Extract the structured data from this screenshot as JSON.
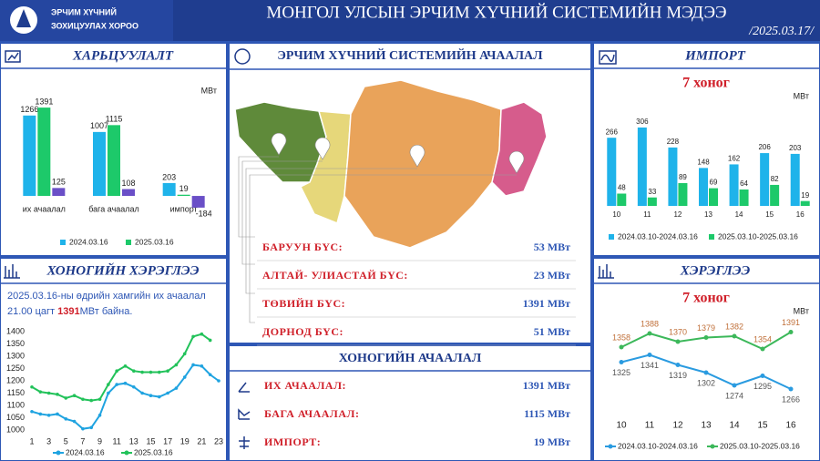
{
  "header": {
    "org_line1": "ЭРЧИМ ХҮЧНИЙ",
    "org_line2": "ЗОХИЦУУЛАХ ХОРОО",
    "title": "МОНГОЛ УЛСЫН ЭРЧИМ ХҮЧНИЙ СИСТЕМИЙН МЭДЭЭ",
    "date": "/2025.03.17/"
  },
  "chart_data": [
    {
      "type": "bar",
      "title": "ХАРЬЦУУЛАЛТ",
      "unit": "МВт",
      "categories": [
        "их ачаалал",
        "бага ачаалал",
        "импорт"
      ],
      "series": [
        {
          "name": "2024.03.16",
          "color": "#1fb3ea",
          "values": [
            1266,
            1007,
            203
          ]
        },
        {
          "name": "2025.03.16",
          "color": "#1dc96a",
          "values": [
            1391,
            1115,
            19
          ]
        },
        {
          "color": "#6a4fc7",
          "values": [
            125,
            108,
            -184
          ]
        }
      ],
      "ylim": [
        -200,
        1500
      ]
    },
    {
      "type": "line",
      "title": "ХОНОГИЙН ХЭРЭГЛЭЭ",
      "annotation": {
        "line1": "2025.03.16-ны өдрийн хамгийн их ачаалал",
        "line2_start": "21.00 цагт ",
        "line2_highlight": "1391",
        "line2_end": "МВт байна."
      },
      "x": [
        1,
        2,
        3,
        4,
        5,
        6,
        7,
        8,
        9,
        10,
        11,
        12,
        13,
        14,
        15,
        16,
        17,
        18,
        19,
        20,
        21,
        22,
        23
      ],
      "series": [
        {
          "name": "2024.03.16",
          "color": "#1fa3e0",
          "values": [
            1075,
            1065,
            1060,
            1065,
            1045,
            1035,
            1005,
            1010,
            1060,
            1150,
            1185,
            1190,
            1175,
            1150,
            1140,
            1135,
            1150,
            1170,
            1215,
            1265,
            1260,
            1225,
            1200
          ]
        },
        {
          "name": "2025.03.16",
          "color": "#22c25a",
          "values": [
            1175,
            1155,
            1150,
            1145,
            1130,
            1140,
            1125,
            1120,
            1125,
            1185,
            1240,
            1260,
            1240,
            1235,
            1235,
            1235,
            1240,
            1265,
            1310,
            1380,
            1390,
            1365,
            null
          ]
        }
      ],
      "xlim": [
        1,
        23
      ],
      "xticks": [
        1,
        3,
        5,
        7,
        9,
        11,
        13,
        15,
        17,
        19,
        21,
        23
      ],
      "ylim": [
        1000,
        1400
      ],
      "yticks": [
        1000,
        1050,
        1100,
        1150,
        1200,
        1250,
        1300,
        1350,
        1400
      ]
    },
    {
      "type": "bar",
      "title": "ИМПОРТ",
      "subtitle": "7 хоног",
      "unit": "МВт",
      "categories": [
        "10",
        "11",
        "12",
        "13",
        "14",
        "15",
        "16"
      ],
      "series": [
        {
          "name": "2024.03.10-2024.03.16",
          "color": "#1fb3ea",
          "values": [
            266,
            306,
            228,
            148,
            162,
            206,
            203
          ]
        },
        {
          "name": "2025.03.10-2025.03.16",
          "color": "#1dc96a",
          "values": [
            48,
            33,
            89,
            69,
            64,
            82,
            19
          ]
        }
      ],
      "ylim": [
        0,
        320
      ]
    },
    {
      "type": "line",
      "title": "ХЭРЭГЛЭЭ",
      "subtitle": "7 хоног",
      "unit": "МВт",
      "categories": [
        "10",
        "11",
        "12",
        "13",
        "14",
        "15",
        "16"
      ],
      "series": [
        {
          "name": "2024.03.10-2024.03.16",
          "color": "#2a9be0",
          "label_color": "#555",
          "values": [
            1325,
            1341,
            1319,
            1302,
            1274,
            1295,
            1266
          ]
        },
        {
          "name": "2025.03.10-2025.03.16",
          "color": "#3cb85a",
          "label_color": "#c0703a",
          "values": [
            1358,
            1388,
            1370,
            1379,
            1382,
            1354,
            1391
          ]
        }
      ],
      "ylim": [
        1240,
        1420
      ]
    }
  ],
  "map_panel": {
    "title": "ЭРЧИМ ХҮЧНИЙ СИСТЕМИЙН АЧААЛАЛ",
    "regions": [
      {
        "name": "БАРУУН БҮС:",
        "value": "53 МВт"
      },
      {
        "name": "АЛТАЙ- УЛИАСТАЙ БҮС:",
        "value": "23 МВт"
      },
      {
        "name": "ТӨВИЙН БҮС:",
        "value": "1391 МВт"
      },
      {
        "name": "ДОРНОД БҮС:",
        "value": "51 МВт"
      }
    ]
  },
  "daily_load": {
    "title": "ХОНОГИЙН АЧААЛАЛ",
    "items": [
      {
        "name": "ИХ АЧААЛАЛ:",
        "value": "1391 МВт"
      },
      {
        "name": "БАГА АЧААЛАЛ:",
        "value": "1115 МВт"
      },
      {
        "name": "ИМПОРТ:",
        "value": "19 МВт"
      }
    ]
  }
}
